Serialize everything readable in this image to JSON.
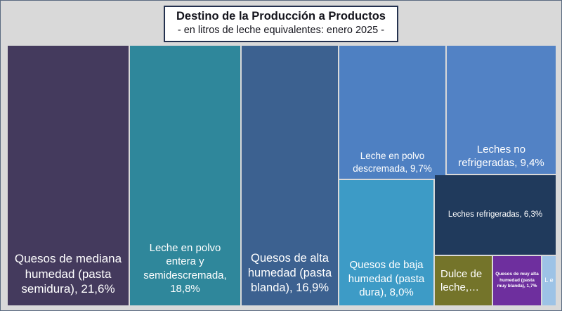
{
  "title": {
    "line1": "Destino de la Producción a Productos",
    "line2": "- en litros de leche equivalentes: enero 2025 -"
  },
  "colors": {
    "background": "#d9d9d9",
    "title_text": "#14141c",
    "title_border": "#23304e",
    "label_text": "#ffffff"
  },
  "chart_data": {
    "type": "treemap",
    "title": "Destino de la Producción a Productos",
    "subtitle": "- en litros de leche equivalentes: enero 2025 -",
    "value_format": "percent, comma decimal separator",
    "segments": [
      {
        "name": "Quesos de mediana humedad (pasta semidura)",
        "value_pct": 21.6,
        "label": "Quesos de mediana humedad (pasta semidura), 21,6%",
        "color": "#443a5d"
      },
      {
        "name": "Leche en polvo entera y semidescremada",
        "value_pct": 18.8,
        "label": "Leche en polvo entera y semidescremada, 18,8%",
        "color": "#2f879b"
      },
      {
        "name": "Quesos de alta humedad (pasta blanda)",
        "value_pct": 16.9,
        "label": "Quesos de alta humedad (pasta blanda), 16,9%",
        "color": "#3c6190"
      },
      {
        "name": "Leche en polvo descremada",
        "value_pct": 9.7,
        "label": "Leche en polvo descremada, 9,7%",
        "color": "#4e80c2"
      },
      {
        "name": "Leches no refrigeradas",
        "value_pct": 9.4,
        "label": "Leches no refrigeradas, 9,4%",
        "color": "#5282c5"
      },
      {
        "name": "Quesos de baja humedad (pasta dura)",
        "value_pct": 8.0,
        "label": "Quesos de baja humedad (pasta dura), 8,0%",
        "color": "#3d9bc6"
      },
      {
        "name": "Leches refrigeradas",
        "value_pct": 6.3,
        "label": "Leches refrigeradas, 6,3%",
        "color": "#203a5c"
      },
      {
        "name": "Dulce de leche",
        "value_pct": null,
        "label": "Dulce de leche,…",
        "color": "#74742a"
      },
      {
        "name": "Quesos de muy alta humedad (pasta muy blanda)",
        "value_pct": 1.7,
        "label": "Quesos de muy alta humedad (pasta muy blanda), 1,7%",
        "color": "#6e2f9e"
      },
      {
        "name": "truncated-segment",
        "value_pct": null,
        "label": "L e",
        "color": "#9dc3e6"
      }
    ]
  }
}
